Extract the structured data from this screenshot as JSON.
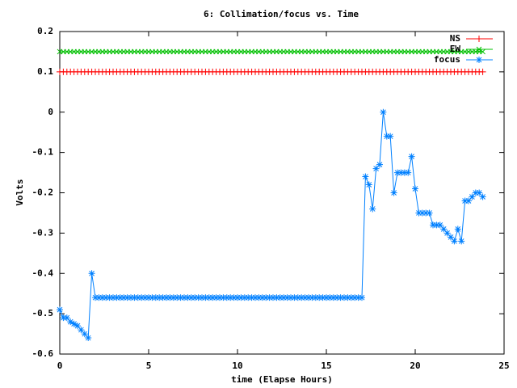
{
  "chart_data": {
    "type": "line",
    "title": "6: Collimation/focus vs. Time",
    "x_label": "time (Elapse Hours)",
    "y_label": "Volts",
    "xlim": [
      0,
      25
    ],
    "xticks": [
      0,
      5,
      10,
      15,
      20,
      25
    ],
    "ylim": [
      -0.6,
      0.2
    ],
    "yticks": [
      -0.6,
      -0.5,
      -0.4,
      -0.3,
      -0.2,
      -0.1,
      0,
      0.1,
      0.2
    ],
    "legend": "top-right",
    "x": [
      0,
      0.2,
      0.4,
      0.6,
      0.8,
      1,
      1.2,
      1.4,
      1.6,
      1.8,
      2,
      2.2,
      2.4,
      2.6,
      2.8,
      3,
      3.2,
      3.4,
      3.6,
      3.8,
      4,
      4.2,
      4.4,
      4.6,
      4.8,
      5,
      5.2,
      5.4,
      5.6,
      5.8,
      6,
      6.2,
      6.4,
      6.6,
      6.8,
      7,
      7.2,
      7.4,
      7.6,
      7.8,
      8,
      8.2,
      8.4,
      8.6,
      8.8,
      9,
      9.2,
      9.4,
      9.6,
      9.8,
      10,
      10.2,
      10.4,
      10.6,
      10.8,
      11,
      11.2,
      11.4,
      11.6,
      11.8,
      12,
      12.2,
      12.4,
      12.6,
      12.8,
      13,
      13.2,
      13.4,
      13.6,
      13.8,
      14,
      14.2,
      14.4,
      14.6,
      14.8,
      15,
      15.2,
      15.4,
      15.6,
      15.8,
      16,
      16.2,
      16.4,
      16.6,
      16.8,
      17,
      17.2,
      17.4,
      17.6,
      17.8,
      18,
      18.2,
      18.4,
      18.6,
      18.8,
      19,
      19.2,
      19.4,
      19.6,
      19.8,
      20,
      20.2,
      20.4,
      20.6,
      20.8,
      21,
      21.2,
      21.4,
      21.6,
      21.8,
      22,
      22.2,
      22.4,
      22.6,
      22.8,
      23,
      23.2,
      23.4,
      23.6,
      23.8
    ],
    "series": [
      {
        "name": "NS",
        "color": "#ff0000",
        "marker": "plus",
        "values": [
          0.1,
          0.1,
          0.1,
          0.1,
          0.1,
          0.1,
          0.1,
          0.1,
          0.1,
          0.1,
          0.1,
          0.1,
          0.1,
          0.1,
          0.1,
          0.1,
          0.1,
          0.1,
          0.1,
          0.1,
          0.1,
          0.1,
          0.1,
          0.1,
          0.1,
          0.1,
          0.1,
          0.1,
          0.1,
          0.1,
          0.1,
          0.1,
          0.1,
          0.1,
          0.1,
          0.1,
          0.1,
          0.1,
          0.1,
          0.1,
          0.1,
          0.1,
          0.1,
          0.1,
          0.1,
          0.1,
          0.1,
          0.1,
          0.1,
          0.1,
          0.1,
          0.1,
          0.1,
          0.1,
          0.1,
          0.1,
          0.1,
          0.1,
          0.1,
          0.1,
          0.1,
          0.1,
          0.1,
          0.1,
          0.1,
          0.1,
          0.1,
          0.1,
          0.1,
          0.1,
          0.1,
          0.1,
          0.1,
          0.1,
          0.1,
          0.1,
          0.1,
          0.1,
          0.1,
          0.1,
          0.1,
          0.1,
          0.1,
          0.1,
          0.1,
          0.1,
          0.1,
          0.1,
          0.1,
          0.1,
          0.1,
          0.1,
          0.1,
          0.1,
          0.1,
          0.1,
          0.1,
          0.1,
          0.1,
          0.1,
          0.1,
          0.1,
          0.1,
          0.1,
          0.1,
          0.1,
          0.1,
          0.1,
          0.1,
          0.1,
          0.1,
          0.1,
          0.1,
          0.1,
          0.1,
          0.1,
          0.1,
          0.1,
          0.1,
          0.1
        ]
      },
      {
        "name": "EW",
        "color": "#00c000",
        "marker": "cross",
        "values": [
          0.15,
          0.15,
          0.15,
          0.15,
          0.15,
          0.15,
          0.15,
          0.15,
          0.15,
          0.15,
          0.15,
          0.15,
          0.15,
          0.15,
          0.15,
          0.15,
          0.15,
          0.15,
          0.15,
          0.15,
          0.15,
          0.15,
          0.15,
          0.15,
          0.15,
          0.15,
          0.15,
          0.15,
          0.15,
          0.15,
          0.15,
          0.15,
          0.15,
          0.15,
          0.15,
          0.15,
          0.15,
          0.15,
          0.15,
          0.15,
          0.15,
          0.15,
          0.15,
          0.15,
          0.15,
          0.15,
          0.15,
          0.15,
          0.15,
          0.15,
          0.15,
          0.15,
          0.15,
          0.15,
          0.15,
          0.15,
          0.15,
          0.15,
          0.15,
          0.15,
          0.15,
          0.15,
          0.15,
          0.15,
          0.15,
          0.15,
          0.15,
          0.15,
          0.15,
          0.15,
          0.15,
          0.15,
          0.15,
          0.15,
          0.15,
          0.15,
          0.15,
          0.15,
          0.15,
          0.15,
          0.15,
          0.15,
          0.15,
          0.15,
          0.15,
          0.15,
          0.15,
          0.15,
          0.15,
          0.15,
          0.15,
          0.15,
          0.15,
          0.15,
          0.15,
          0.15,
          0.15,
          0.15,
          0.15,
          0.15,
          0.15,
          0.15,
          0.15,
          0.15,
          0.15,
          0.15,
          0.15,
          0.15,
          0.15,
          0.15,
          0.15,
          0.15,
          0.15,
          0.15,
          0.15,
          0.15,
          0.15,
          0.15,
          0.15,
          0.15
        ]
      },
      {
        "name": "focus",
        "color": "#0080ff",
        "marker": "star",
        "values": [
          -0.49,
          -0.51,
          -0.51,
          -0.52,
          -0.525,
          -0.53,
          -0.54,
          -0.55,
          -0.56,
          -0.4,
          -0.46,
          -0.46,
          -0.46,
          -0.46,
          -0.46,
          -0.46,
          -0.46,
          -0.46,
          -0.46,
          -0.46,
          -0.46,
          -0.46,
          -0.46,
          -0.46,
          -0.46,
          -0.46,
          -0.46,
          -0.46,
          -0.46,
          -0.46,
          -0.46,
          -0.46,
          -0.46,
          -0.46,
          -0.46,
          -0.46,
          -0.46,
          -0.46,
          -0.46,
          -0.46,
          -0.46,
          -0.46,
          -0.46,
          -0.46,
          -0.46,
          -0.46,
          -0.46,
          -0.46,
          -0.46,
          -0.46,
          -0.46,
          -0.46,
          -0.46,
          -0.46,
          -0.46,
          -0.46,
          -0.46,
          -0.46,
          -0.46,
          -0.46,
          -0.46,
          -0.46,
          -0.46,
          -0.46,
          -0.46,
          -0.46,
          -0.46,
          -0.46,
          -0.46,
          -0.46,
          -0.46,
          -0.46,
          -0.46,
          -0.46,
          -0.46,
          -0.46,
          -0.46,
          -0.46,
          -0.46,
          -0.46,
          -0.46,
          -0.46,
          -0.46,
          -0.46,
          -0.46,
          -0.46,
          -0.16,
          -0.18,
          -0.24,
          -0.14,
          -0.13,
          0,
          -0.06,
          -0.06,
          -0.2,
          -0.15,
          -0.15,
          -0.15,
          -0.15,
          -0.11,
          -0.19,
          -0.25,
          -0.25,
          -0.25,
          -0.25,
          -0.28,
          -0.28,
          -0.28,
          -0.29,
          -0.3,
          -0.31,
          -0.32,
          -0.29,
          -0.32,
          -0.22,
          -0.22,
          -0.21,
          -0.2,
          -0.2,
          -0.21
        ]
      }
    ]
  }
}
